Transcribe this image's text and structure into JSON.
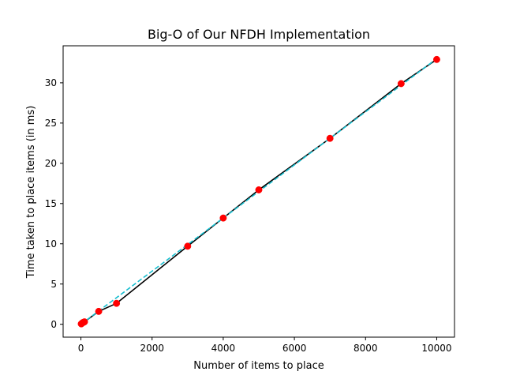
{
  "chart_data": {
    "type": "line",
    "title": "Big-O of Our NFDH Implementation",
    "xlabel": "Number of items to place",
    "ylabel": "Time taken to place items (in ms)",
    "xlim": [
      -500,
      10500
    ],
    "ylim": [
      -1.6,
      34.6
    ],
    "xticks": [
      0,
      2000,
      4000,
      6000,
      8000,
      10000
    ],
    "yticks": [
      0,
      5,
      10,
      15,
      20,
      25,
      30
    ],
    "grid": false,
    "series": [
      {
        "style": "markers",
        "color": "#ff0000",
        "x": [
          10,
          25,
          50,
          75,
          100,
          500,
          1000,
          3000,
          4000,
          5000,
          7000,
          9000,
          10000
        ],
        "y": [
          0.05,
          0.1,
          0.2,
          0.25,
          0.3,
          1.6,
          2.6,
          9.7,
          13.2,
          16.7,
          23.1,
          29.9,
          32.9
        ]
      },
      {
        "style": "solid",
        "color": "#000000",
        "x": [
          10,
          25,
          50,
          75,
          100,
          500,
          1000,
          3000,
          4000,
          5000,
          7000,
          9000,
          10000
        ],
        "y": [
          0.05,
          0.1,
          0.2,
          0.25,
          0.3,
          1.6,
          2.6,
          9.7,
          13.2,
          16.7,
          23.1,
          29.9,
          32.9
        ]
      },
      {
        "style": "dashed",
        "color": "#17becf",
        "x": [
          0,
          10000
        ],
        "y": [
          0.0,
          33.0
        ]
      }
    ]
  }
}
